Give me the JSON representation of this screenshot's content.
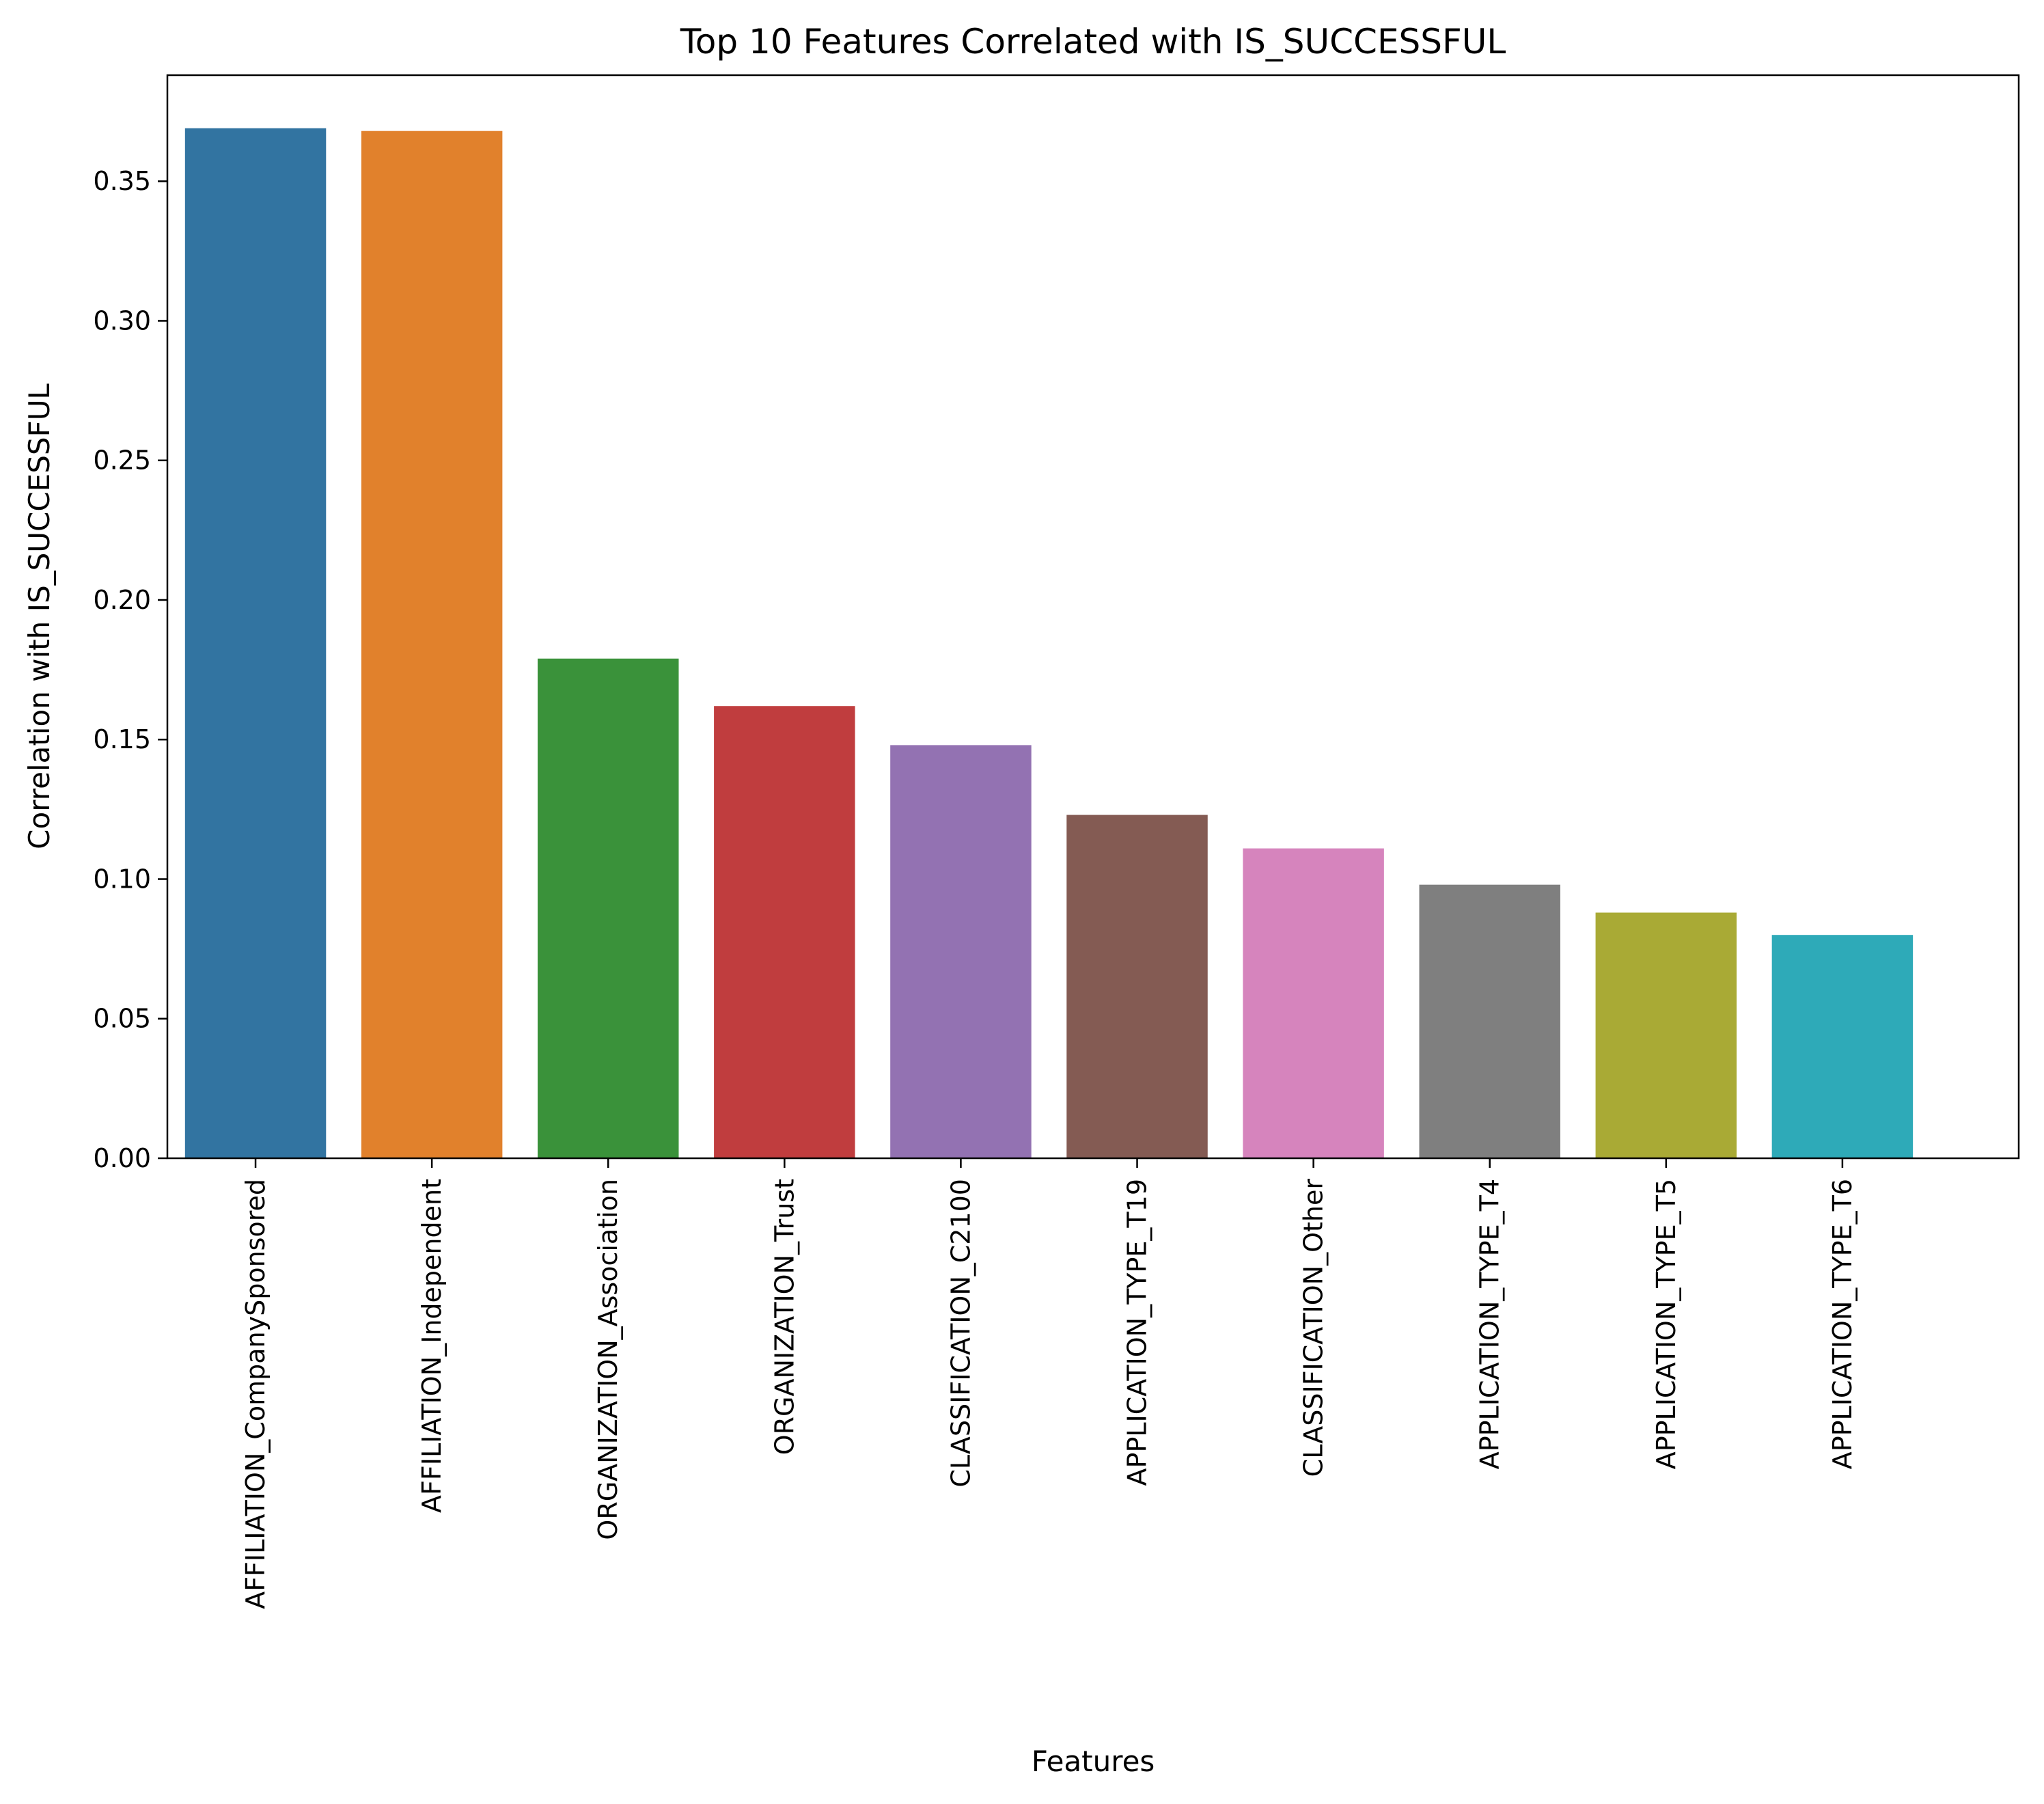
{
  "chart_data": {
    "type": "bar",
    "title": "Top 10 Features Correlated with IS_SUCCESSFUL",
    "xlabel": "Features",
    "ylabel": "Correlation with IS_SUCCESSFUL",
    "categories": [
      "AFFILIATION_CompanySponsored",
      "AFFILIATION_Independent",
      "ORGANIZATION_Association",
      "ORGANIZATION_Trust",
      "CLASSIFICATION_C2100",
      "APPLICATION_TYPE_T19",
      "CLASSIFICATION_Other",
      "APPLICATION_TYPE_T4",
      "APPLICATION_TYPE_T5",
      "APPLICATION_TYPE_T6"
    ],
    "values": [
      0.369,
      0.368,
      0.179,
      0.162,
      0.148,
      0.123,
      0.111,
      0.098,
      0.088,
      0.08
    ],
    "colors": [
      "#3274a1",
      "#e1812c",
      "#3a923a",
      "#c03d3e",
      "#9372b2",
      "#845b53",
      "#d684bd",
      "#7f7f7f",
      "#a9aa35",
      "#2eaab8"
    ],
    "ylim": [
      0,
      0.388
    ],
    "yticks": [
      0.0,
      0.05,
      0.1,
      0.15,
      0.2,
      0.25,
      0.3,
      0.35
    ],
    "ytick_labels": [
      "0.00",
      "0.05",
      "0.10",
      "0.15",
      "0.20",
      "0.25",
      "0.30",
      "0.35"
    ],
    "grid": false,
    "legend": "none"
  }
}
